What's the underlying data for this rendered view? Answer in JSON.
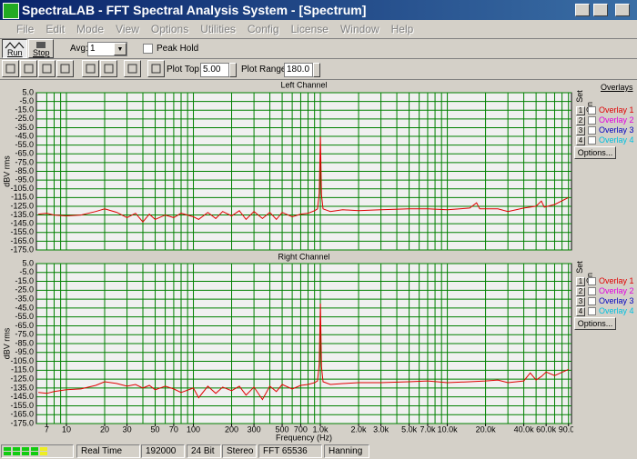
{
  "window_title": "SpectraLAB - FFT Spectral Analysis System - [Spectrum]",
  "menu": [
    "File",
    "Edit",
    "Mode",
    "View",
    "Options",
    "Utilities",
    "Config",
    "License",
    "Window",
    "Help"
  ],
  "toolbar": {
    "run": "Run",
    "stop": "Stop",
    "avg_label": "Avg:",
    "avg_value": "1",
    "peak_hold": "Peak Hold",
    "plot_top_label": "Plot Top:",
    "plot_top_value": "5.00",
    "plot_range_label": "Plot Range:",
    "plot_range_value": "180.0"
  },
  "overlay_panels": [
    {
      "set": "Set",
      "on": "On",
      "title": "Overlays",
      "numbers": [
        "1",
        "2",
        "3",
        "4"
      ],
      "items": [
        "Overlay 1",
        "Overlay 2",
        "Overlay 3",
        "Overlay 4"
      ],
      "options": "Options..."
    },
    {
      "set": "Set",
      "on": "On",
      "numbers": [
        "1",
        "2",
        "3",
        "4"
      ],
      "items": [
        "Overlay 1",
        "Overlay 2",
        "Overlay 3",
        "Overlay 4"
      ],
      "options": "Options..."
    }
  ],
  "status": [
    "Real Time",
    "192000 Hz",
    "24 Bit",
    "Stereo",
    "FFT 65536 pts",
    "Hanning"
  ],
  "chart_data": [
    {
      "type": "line",
      "title": "Left Channel",
      "y_label": "dBV rms",
      "log_x": true,
      "grid": true,
      "color": "#e00000",
      "xlim": [
        5.8,
        95000
      ],
      "ylim": [
        -175,
        5
      ],
      "yticks": [
        {
          "value": 5,
          "label": "5.0"
        },
        {
          "value": -5,
          "label": "-5.0"
        },
        {
          "value": -15,
          "label": "-15.0"
        },
        {
          "value": -25,
          "label": "-25.0"
        },
        {
          "value": -35,
          "label": "-35.0"
        },
        {
          "value": -45,
          "label": "-45.0"
        },
        {
          "value": -55,
          "label": "-55.0"
        },
        {
          "value": -65,
          "label": "-65.0"
        },
        {
          "value": -75,
          "label": "-75.0"
        },
        {
          "value": -85,
          "label": "-85.0"
        },
        {
          "value": -95,
          "label": "-95.0"
        },
        {
          "value": -105,
          "label": "-105.0"
        },
        {
          "value": -115,
          "label": "-115.0"
        },
        {
          "value": -125,
          "label": "-125.0"
        },
        {
          "value": -135,
          "label": "-135.0"
        },
        {
          "value": -145,
          "label": "-145.0"
        },
        {
          "value": -155,
          "label": "-155.0"
        },
        {
          "value": -165,
          "label": "-165.0"
        },
        {
          "value": -175,
          "label": "-175.0"
        }
      ],
      "xgrid": [
        7,
        8,
        9,
        10,
        20,
        30,
        40,
        50,
        60,
        70,
        80,
        90,
        100,
        200,
        300,
        400,
        500,
        600,
        700,
        800,
        900,
        1000,
        2000,
        3000,
        4000,
        5000,
        6000,
        7000,
        8000,
        9000,
        10000,
        20000,
        30000,
        40000,
        50000,
        60000,
        70000,
        80000,
        90000
      ],
      "x": [
        6,
        7,
        8,
        10,
        13,
        17,
        20,
        25,
        30,
        35,
        40,
        45,
        50,
        60,
        70,
        80,
        100,
        110,
        130,
        150,
        170,
        200,
        230,
        260,
        300,
        350,
        400,
        450,
        500,
        600,
        700,
        800,
        900,
        950,
        980,
        1000,
        1020,
        1050,
        1200,
        1500,
        2000,
        3000,
        5000,
        7000,
        10000,
        15000,
        17000,
        18000,
        25000,
        30000,
        40000,
        50000,
        55000,
        58000,
        70000,
        90000
      ],
      "values": [
        -134,
        -133,
        -135,
        -136,
        -135,
        -131,
        -128,
        -132,
        -138,
        -133,
        -143,
        -134,
        -140,
        -135,
        -138,
        -133,
        -137,
        -140,
        -132,
        -139,
        -131,
        -136,
        -130,
        -140,
        -131,
        -139,
        -132,
        -140,
        -132,
        -137,
        -134,
        -133,
        -130,
        -128,
        -110,
        -45,
        -112,
        -128,
        -131,
        -129,
        -130,
        -129,
        -128,
        -128,
        -129,
        -127,
        -121,
        -128,
        -128,
        -131,
        -127,
        -125,
        -119,
        -126,
        -123,
        -115
      ]
    },
    {
      "type": "line",
      "title": "Right Channel",
      "y_label": "dBV rms",
      "x_label": "Frequency (Hz)",
      "log_x": true,
      "grid": true,
      "color": "#e00000",
      "xlim": [
        5.8,
        95000
      ],
      "ylim": [
        -175,
        5
      ],
      "yticks": [
        {
          "value": 5,
          "label": "5.0"
        },
        {
          "value": -5,
          "label": "-5.0"
        },
        {
          "value": -15,
          "label": "-15.0"
        },
        {
          "value": -25,
          "label": "-25.0"
        },
        {
          "value": -35,
          "label": "-35.0"
        },
        {
          "value": -45,
          "label": "-45.0"
        },
        {
          "value": -55,
          "label": "-55.0"
        },
        {
          "value": -65,
          "label": "-65.0"
        },
        {
          "value": -75,
          "label": "-75.0"
        },
        {
          "value": -85,
          "label": "-85.0"
        },
        {
          "value": -95,
          "label": "-95.0"
        },
        {
          "value": -105,
          "label": "-105.0"
        },
        {
          "value": -115,
          "label": "-115.0"
        },
        {
          "value": -125,
          "label": "-125.0"
        },
        {
          "value": -135,
          "label": "-135.0"
        },
        {
          "value": -145,
          "label": "-145.0"
        },
        {
          "value": -155,
          "label": "-155.0"
        },
        {
          "value": -165,
          "label": "-165.0"
        },
        {
          "value": -175,
          "label": "-175.0"
        }
      ],
      "xgrid": [
        7,
        8,
        9,
        10,
        20,
        30,
        40,
        50,
        60,
        70,
        80,
        90,
        100,
        200,
        300,
        400,
        500,
        600,
        700,
        800,
        900,
        1000,
        2000,
        3000,
        4000,
        5000,
        6000,
        7000,
        8000,
        9000,
        10000,
        20000,
        30000,
        40000,
        50000,
        60000,
        70000,
        80000,
        90000
      ],
      "xticks": [
        7,
        10,
        20,
        30,
        50,
        70,
        100,
        200,
        300,
        500,
        700,
        {
          "value": 1000,
          "label": "1.0k"
        },
        {
          "value": 2000,
          "label": "2.0k"
        },
        {
          "value": 3000,
          "label": "3.0k"
        },
        {
          "value": 5000,
          "label": "5.0k"
        },
        {
          "value": 7000,
          "label": "7.0k"
        },
        {
          "value": 10000,
          "label": "10.0k"
        },
        {
          "value": 20000,
          "label": "20.0k"
        },
        {
          "value": 40000,
          "label": "40.0k"
        },
        {
          "value": 60000,
          "label": "60.0k"
        },
        {
          "value": 90000,
          "label": "90.0k"
        }
      ],
      "x": [
        6,
        7,
        8,
        10,
        13,
        17,
        20,
        25,
        30,
        35,
        40,
        45,
        50,
        60,
        70,
        80,
        100,
        110,
        130,
        150,
        170,
        200,
        230,
        260,
        300,
        350,
        400,
        450,
        500,
        600,
        700,
        800,
        900,
        950,
        980,
        1000,
        1020,
        1050,
        1200,
        1500,
        2000,
        3000,
        5000,
        7000,
        10000,
        15000,
        20000,
        25000,
        30000,
        40000,
        45000,
        50000,
        55000,
        60000,
        70000,
        90000
      ],
      "values": [
        -140,
        -141,
        -139,
        -137,
        -136,
        -132,
        -128,
        -130,
        -133,
        -131,
        -135,
        -132,
        -137,
        -133,
        -136,
        -140,
        -135,
        -146,
        -133,
        -141,
        -134,
        -138,
        -133,
        -143,
        -134,
        -148,
        -133,
        -139,
        -131,
        -136,
        -132,
        -131,
        -129,
        -127,
        -108,
        -40,
        -111,
        -128,
        -131,
        -130,
        -129,
        -129,
        -128,
        -127,
        -129,
        -128,
        -127,
        -126,
        -129,
        -127,
        -118,
        -126,
        -122,
        -117,
        -121,
        -114
      ]
    }
  ]
}
